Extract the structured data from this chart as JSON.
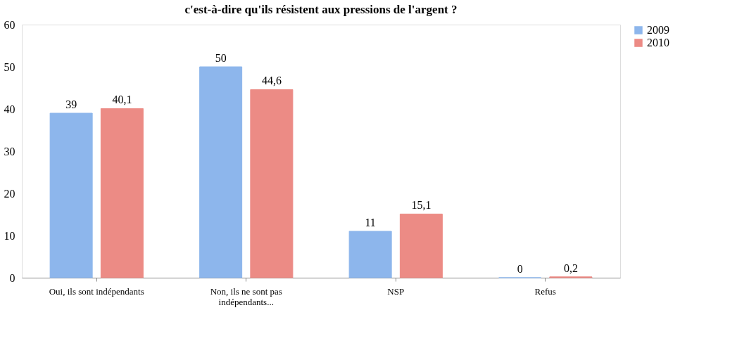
{
  "chart_data": {
    "type": "bar",
    "title": "c'est-à-dire qu'ils résistent aux pressions de l'argent ?",
    "categories": [
      "Oui, ils sont indépendants",
      "Non, ils ne sont pas indépendants...",
      "NSP",
      "Refus"
    ],
    "series": [
      {
        "name": "2009",
        "color": "#8db6ec",
        "values": [
          39,
          50,
          11,
          0
        ],
        "value_labels": [
          "39",
          "50",
          "11",
          "0"
        ]
      },
      {
        "name": "2010",
        "color": "#ec8b85",
        "values": [
          40.1,
          44.6,
          15.1,
          0.2
        ],
        "value_labels": [
          "40,1",
          "44,6",
          "15,1",
          "0,2"
        ]
      }
    ],
    "ylim": [
      0,
      60
    ],
    "yticks": [
      0,
      10,
      20,
      30,
      40,
      50,
      60
    ],
    "grid": false,
    "legend": "right"
  }
}
